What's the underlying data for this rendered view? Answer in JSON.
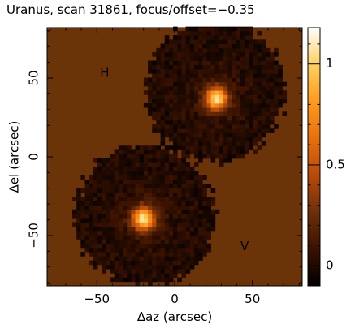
{
  "chart_data": {
    "type": "heatmap",
    "title": "Uranus, scan 31861, focus/offset=−0.35",
    "xlabel": "Δaz (arcsec)",
    "ylabel": "Δel (arcsec)",
    "xlim": [
      -82,
      82
    ],
    "ylim": [
      -82,
      82
    ],
    "x_ticks": [
      -50,
      0,
      50
    ],
    "x_tick_labels": [
      "−50",
      "0",
      "50"
    ],
    "y_ticks": [
      -50,
      0,
      50
    ],
    "y_tick_labels": [
      "−50",
      "0",
      "50"
    ],
    "colorbar": {
      "range": [
        -0.1,
        1.18
      ],
      "ticks": [
        0,
        0.5,
        1
      ],
      "tick_labels": [
        "0",
        "0.5",
        "1"
      ],
      "colormap": "hot-brown",
      "stops": [
        "#000000",
        "#3a1200",
        "#6e2f08",
        "#b84a0a",
        "#e8700c",
        "#ff9a1e",
        "#ffd060",
        "#ffffff"
      ]
    },
    "background_color": "#6b3308",
    "beams": [
      {
        "label": "H",
        "label_pos": [
          -45,
          53
        ],
        "center": [
          27,
          37
        ],
        "peak": 1.0,
        "fwhm": 12,
        "coverage_center": [
          26,
          42
        ],
        "coverage_radius": 45
      },
      {
        "label": "V",
        "label_pos": [
          45,
          -57
        ],
        "center": [
          -20,
          -39
        ],
        "peak": 1.0,
        "fwhm": 12,
        "coverage_center": [
          -19,
          -37
        ],
        "coverage_radius": 45
      }
    ],
    "label_color": "#22dd22"
  }
}
